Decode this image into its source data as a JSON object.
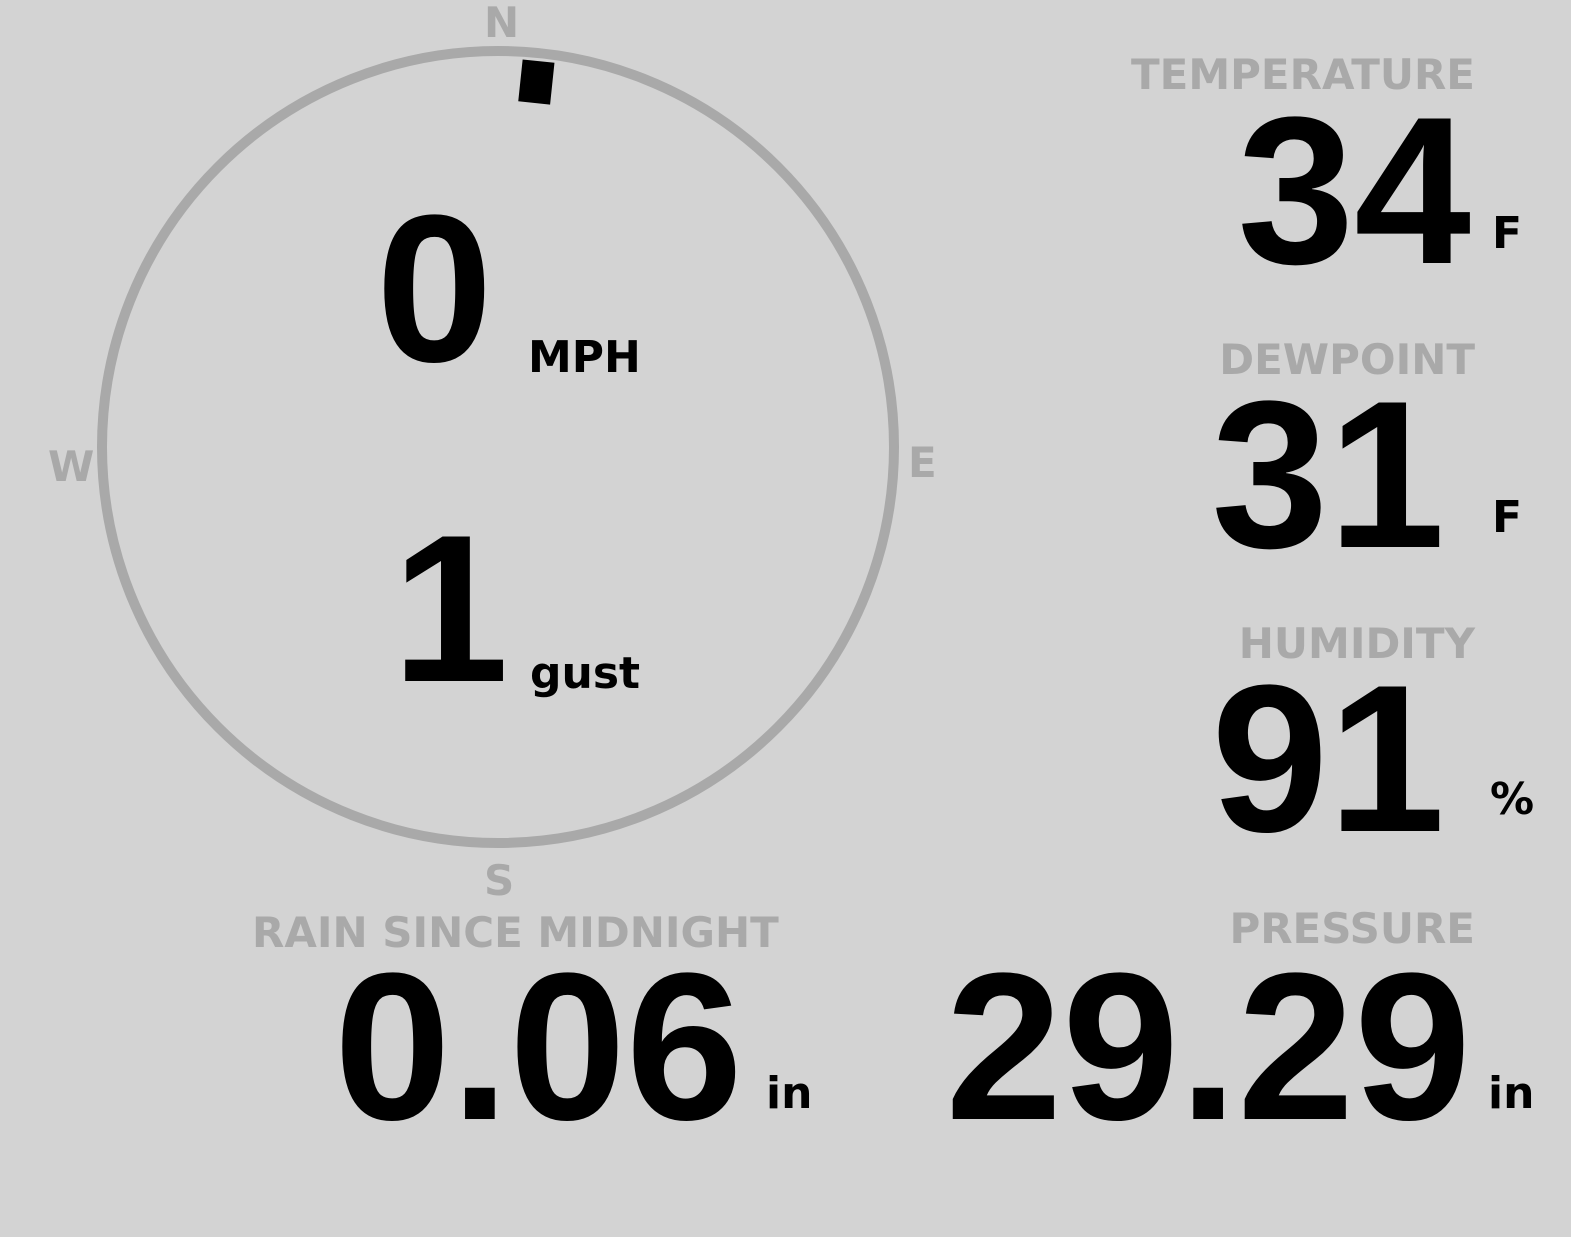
{
  "compass": {
    "north": "N",
    "south": "S",
    "east": "E",
    "west": "W",
    "wind_direction_deg": 6,
    "ring_color": "#a9a9a9",
    "needle_color": "#000000"
  },
  "wind": {
    "speed": "0",
    "speed_unit": "MPH",
    "gust": "1",
    "gust_unit": "gust"
  },
  "temperature": {
    "label": "TEMPERATURE",
    "value": "34",
    "unit": "F"
  },
  "dewpoint": {
    "label": "DEWPOINT",
    "value": "31",
    "unit": "F"
  },
  "humidity": {
    "label": "HUMIDITY",
    "value": "91",
    "unit": "%"
  },
  "rain": {
    "label": "RAIN SINCE MIDNIGHT",
    "value": "0.06",
    "unit": "in"
  },
  "pressure": {
    "label": "PRESSURE",
    "value": "29.29",
    "unit": "in"
  },
  "colors": {
    "background": "#d3d3d3",
    "label": "#a9a9a9",
    "value": "#000000"
  }
}
